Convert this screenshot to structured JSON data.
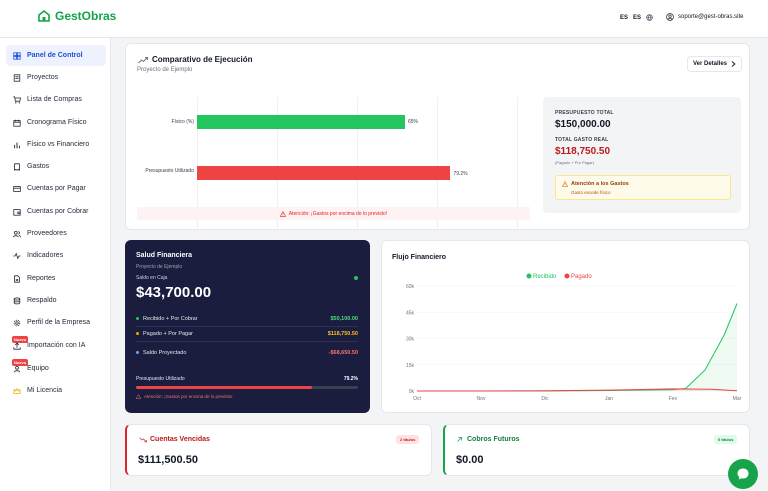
{
  "brand": {
    "name": "GestObras",
    "accent": "#16a34a"
  },
  "header": {
    "lang_current": "ES",
    "lang_selector": "ES",
    "user_email": "soporte@gest-obras.site"
  },
  "sidebar": {
    "items": [
      {
        "label": "Panel de Control",
        "icon": "dashboard-icon",
        "active": true
      },
      {
        "label": "Proyectos",
        "icon": "projects-icon"
      },
      {
        "label": "Lista de Compras",
        "icon": "cart-icon"
      },
      {
        "label": "Cronograma Físico",
        "icon": "calendar-icon"
      },
      {
        "label": "Físico vs Financiero",
        "icon": "bar-chart-icon"
      },
      {
        "label": "Gastos",
        "icon": "receipt-icon"
      },
      {
        "label": "Cuentas por Pagar",
        "icon": "card-icon"
      },
      {
        "label": "Cuentas por Cobrar",
        "icon": "wallet-icon"
      },
      {
        "label": "Proveedores",
        "icon": "users-icon"
      },
      {
        "label": "Indicadores",
        "icon": "pulse-icon"
      },
      {
        "label": "Reportes",
        "icon": "file-icon"
      },
      {
        "label": "Respaldo",
        "icon": "database-icon"
      },
      {
        "label": "Perfil de la Empresa",
        "icon": "gear-icon"
      },
      {
        "label": "Importación con IA",
        "icon": "upload-icon",
        "badge": "Nuevo"
      },
      {
        "label": "Equipo",
        "icon": "team-icon",
        "badge": "Nuevo"
      },
      {
        "label": "Mi Licencia",
        "icon": "crown-icon"
      }
    ]
  },
  "comparativo": {
    "title": "Comparativo de Ejecución",
    "subtitle": "Proyecto de Ejemplo",
    "button": "Ver Detalles",
    "bars": [
      {
        "label": "Físico (%)",
        "value": 65,
        "pct_label": "65%",
        "color": "#22c55e"
      },
      {
        "label": "Presupuesto Utilizado",
        "value": 79.2,
        "pct_label": "79.2%",
        "color": "#ef4444"
      }
    ],
    "alert": "Atención: ¡Gastos por encima de lo previsto!",
    "presupuesto_label": "PRESUPUESTO TOTAL",
    "presupuesto_value": "$150,000.00",
    "gasto_label": "TOTAL GASTO REAL",
    "gasto_value": "$118,750.50",
    "gasto_note": "(Pagado + Por Pagar)",
    "warning_title": "Atención a los Gastos",
    "warning_text": "Gasto excede físico"
  },
  "salud": {
    "title": "Salud Financiera",
    "subtitle": "Proyecto de Ejemplo",
    "caja_label": "Saldo en Caja",
    "caja_value": "$43,700.00",
    "rows": [
      {
        "label": "Recibido + Por Cobrar",
        "value": "$50,100.00",
        "color": "#22c55e"
      },
      {
        "label": "Pagado + Por Pagar",
        "value": "$118,750.50",
        "color": "#f59e0b"
      },
      {
        "label": "Saldo Proyectado",
        "value": "-$68,650.50",
        "color": "#ef4444"
      }
    ],
    "presupuesto_label": "Presupuesto Utilizado",
    "presupuesto_pct": "79.2%",
    "presupuesto_value": 79.2,
    "alert": "Atención: ¡Gastos por encima de lo previsto!"
  },
  "flujo": {
    "title": "Flujo Financiero",
    "legend": [
      {
        "name": "Recibido",
        "color": "#22c55e"
      },
      {
        "name": "Pagado",
        "color": "#ef4444"
      }
    ]
  },
  "chart_data": {
    "type": "area",
    "title": "Flujo Financiero",
    "categories": [
      "Oct",
      "Nov",
      "Dic",
      "Jan",
      "Fev",
      "Mar"
    ],
    "y_ticks": [
      "0k",
      "15k",
      "30k",
      "45k",
      "60k"
    ],
    "ylim": [
      0,
      60000
    ],
    "series": [
      {
        "name": "Recibido",
        "color": "#22c55e",
        "points": [
          [
            0,
            0
          ],
          [
            1,
            0
          ],
          [
            2,
            0
          ],
          [
            3,
            300
          ],
          [
            4,
            800
          ],
          [
            4.2,
            1500
          ],
          [
            4.5,
            12000
          ],
          [
            4.8,
            32000
          ],
          [
            5,
            50000
          ]
        ]
      },
      {
        "name": "Pagado",
        "color": "#ef4444",
        "points": [
          [
            0,
            0
          ],
          [
            1,
            0
          ],
          [
            2,
            100
          ],
          [
            3,
            500
          ],
          [
            4,
            1200
          ],
          [
            4.6,
            1000
          ],
          [
            5,
            200
          ]
        ]
      }
    ],
    "grid": true,
    "legend": "top"
  },
  "vencidas": {
    "title": "Cuentas Vencidas",
    "badge": "2 títulos",
    "value": "$111,500.50"
  },
  "futuros": {
    "title": "Cobros Futuros",
    "badge": "0 títulos",
    "value": "$0.00"
  }
}
